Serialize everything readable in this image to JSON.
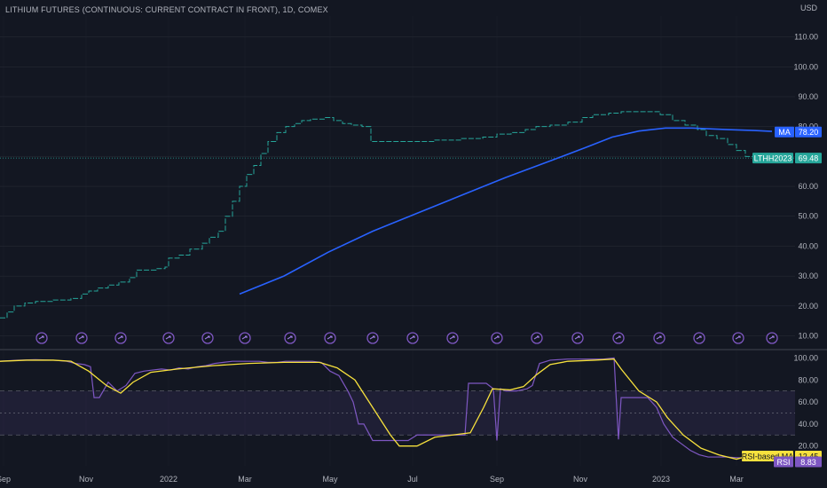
{
  "header": {
    "title": "LITHIUM FUTURES (CONTINUOUS: CURRENT CONTRACT IN FRONT), 1D, COMEX",
    "currency": "USD"
  },
  "colors": {
    "background": "#131722",
    "price": "#26a69a",
    "ma": "#2962ff",
    "rsi": "#7e57c2",
    "rsi_ma": "#f7e13d",
    "grid": "#2a2e39",
    "text": "#b2b5be"
  },
  "icons": {
    "event_marker": "forward-circle-icon"
  },
  "labels": {
    "ma_name": "MA",
    "ma_value": "78.20",
    "symbol": "LTHH2023",
    "last_price": "69.48",
    "rsi_ma_name": "RSI-based MA",
    "rsi_ma_value": "12.45",
    "rsi_name": "RSI",
    "rsi_value": "8.83"
  },
  "chart_data": [
    {
      "type": "line",
      "title": "LITHIUM FUTURES (CONTINUOUS: CURRENT CONTRACT IN FRONT), 1D, COMEX",
      "ylabel": "USD",
      "ylim": [
        6,
        117
      ],
      "yticks": [
        "10.00",
        "20.00",
        "30.00",
        "40.00",
        "50.00",
        "60.00",
        "70.00",
        "80.00",
        "90.00",
        "100.00",
        "110.00"
      ],
      "xticks": [
        "Sep",
        "Nov",
        "2022",
        "Mar",
        "May",
        "Jul",
        "Sep",
        "Nov",
        "2023",
        "Mar"
      ],
      "series": [
        {
          "name": "LTHH2023",
          "style": "step",
          "points": [
            [
              0,
              16
            ],
            [
              8,
              18
            ],
            [
              16,
              20
            ],
            [
              28,
              21
            ],
            [
              40,
              21.5
            ],
            [
              60,
              22
            ],
            [
              80,
              22.5
            ],
            [
              92,
              24
            ],
            [
              100,
              25
            ],
            [
              110,
              26
            ],
            [
              122,
              27
            ],
            [
              134,
              28
            ],
            [
              146,
              29.5
            ],
            [
              154,
              32
            ],
            [
              176,
              32.5
            ],
            [
              186,
              33
            ],
            [
              190,
              36
            ],
            [
              202,
              37
            ],
            [
              214,
              39
            ],
            [
              228,
              41
            ],
            [
              236,
              43
            ],
            [
              246,
              45
            ],
            [
              254,
              50
            ],
            [
              262,
              55
            ],
            [
              270,
              60
            ],
            [
              278,
              64
            ],
            [
              286,
              67
            ],
            [
              294,
              71
            ],
            [
              302,
              75
            ],
            [
              312,
              78
            ],
            [
              322,
              80
            ],
            [
              332,
              81
            ],
            [
              340,
              82
            ],
            [
              350,
              82.5
            ],
            [
              366,
              83
            ],
            [
              376,
              82
            ],
            [
              386,
              81
            ],
            [
              396,
              80.5
            ],
            [
              408,
              80
            ],
            [
              418,
              75
            ],
            [
              440,
              75
            ],
            [
              470,
              75
            ],
            [
              490,
              75.5
            ],
            [
              520,
              76
            ],
            [
              544,
              76.5
            ],
            [
              560,
              77.5
            ],
            [
              576,
              78
            ],
            [
              592,
              79
            ],
            [
              604,
              80
            ],
            [
              620,
              80.5
            ],
            [
              640,
              81.5
            ],
            [
              656,
              83
            ],
            [
              668,
              84
            ],
            [
              686,
              84.5
            ],
            [
              700,
              85
            ],
            [
              724,
              85
            ],
            [
              744,
              84
            ],
            [
              758,
              82
            ],
            [
              772,
              80.5
            ],
            [
              786,
              79
            ],
            [
              796,
              77
            ],
            [
              808,
              76
            ],
            [
              820,
              74
            ],
            [
              830,
              72
            ],
            [
              840,
              70
            ],
            [
              850,
              69.5
            ]
          ]
        },
        {
          "name": "MA",
          "style": "line",
          "value": 78.2,
          "points": [
            [
              270,
              24
            ],
            [
              320,
              30
            ],
            [
              370,
              38
            ],
            [
              420,
              45
            ],
            [
              470,
              51
            ],
            [
              520,
              57
            ],
            [
              570,
              63
            ],
            [
              620,
              68.5
            ],
            [
              660,
              73
            ],
            [
              690,
              76.5
            ],
            [
              720,
              78.5
            ],
            [
              750,
              79.5
            ],
            [
              780,
              79.5
            ],
            [
              820,
              79
            ],
            [
              850,
              78.7
            ],
            [
              870,
              78.4
            ]
          ]
        }
      ]
    },
    {
      "type": "line",
      "ylim": [
        2,
        106
      ],
      "yticks": [
        "20.00",
        "40.00",
        "60.00",
        "80.00",
        "100.00"
      ],
      "bands": [
        30,
        50,
        70
      ],
      "series": [
        {
          "name": "RSI",
          "value": 8.83,
          "points": [
            [
              0,
              97
            ],
            [
              20,
              98
            ],
            [
              40,
              98.5
            ],
            [
              60,
              98
            ],
            [
              75,
              97
            ],
            [
              85,
              95
            ],
            [
              95,
              94
            ],
            [
              102,
              92
            ],
            [
              106,
              64
            ],
            [
              112,
              64
            ],
            [
              122,
              78
            ],
            [
              132,
              70
            ],
            [
              142,
              75
            ],
            [
              152,
              86
            ],
            [
              162,
              88
            ],
            [
              172,
              89
            ],
            [
              182,
              90
            ],
            [
              192,
              89
            ],
            [
              202,
              91
            ],
            [
              212,
              90
            ],
            [
              222,
              92
            ],
            [
              232,
              93
            ],
            [
              242,
              95
            ],
            [
              252,
              96
            ],
            [
              262,
              97
            ],
            [
              272,
              97
            ],
            [
              282,
              97
            ],
            [
              292,
              97
            ],
            [
              302,
              96
            ],
            [
              312,
              96
            ],
            [
              322,
              97
            ],
            [
              332,
              97
            ],
            [
              342,
              97
            ],
            [
              352,
              97
            ],
            [
              362,
              96
            ],
            [
              372,
              88
            ],
            [
              382,
              84
            ],
            [
              392,
              70
            ],
            [
              398,
              60
            ],
            [
              404,
              40
            ],
            [
              410,
              40
            ],
            [
              420,
              25
            ],
            [
              440,
              25
            ],
            [
              460,
              25
            ],
            [
              470,
              30
            ],
            [
              490,
              30
            ],
            [
              510,
              30
            ],
            [
              524,
              30
            ],
            [
              528,
              77
            ],
            [
              536,
              77
            ],
            [
              548,
              77
            ],
            [
              556,
              72
            ],
            [
              560,
              25
            ],
            [
              564,
              72
            ],
            [
              570,
              70
            ],
            [
              582,
              70
            ],
            [
              594,
              72
            ],
            [
              600,
              75
            ],
            [
              608,
              95
            ],
            [
              620,
              98
            ],
            [
              640,
              99
            ],
            [
              660,
              99
            ],
            [
              680,
              99
            ],
            [
              692,
              100
            ],
            [
              697,
              26
            ],
            [
              700,
              64
            ],
            [
              716,
              64
            ],
            [
              730,
              64
            ],
            [
              740,
              55
            ],
            [
              748,
              40
            ],
            [
              758,
              28
            ],
            [
              768,
              22
            ],
            [
              778,
              16
            ],
            [
              788,
              12
            ],
            [
              798,
              10
            ],
            [
              818,
              10
            ],
            [
              840,
              9
            ],
            [
              860,
              9
            ],
            [
              872,
              8.83
            ]
          ]
        },
        {
          "name": "RSI-based MA",
          "value": 12.45,
          "points": [
            [
              0,
              97
            ],
            [
              30,
              98
            ],
            [
              60,
              98
            ],
            [
              80,
              97
            ],
            [
              100,
              88
            ],
            [
              120,
              75
            ],
            [
              136,
              68
            ],
            [
              150,
              78
            ],
            [
              170,
              87
            ],
            [
              200,
              90
            ],
            [
              240,
              93
            ],
            [
              280,
              95
            ],
            [
              320,
              96
            ],
            [
              360,
              96
            ],
            [
              380,
              91
            ],
            [
              400,
              80
            ],
            [
              420,
              55
            ],
            [
              440,
              30
            ],
            [
              450,
              20
            ],
            [
              470,
              20
            ],
            [
              490,
              28
            ],
            [
              510,
              30
            ],
            [
              530,
              32
            ],
            [
              545,
              55
            ],
            [
              555,
              72
            ],
            [
              575,
              71
            ],
            [
              590,
              74
            ],
            [
              605,
              85
            ],
            [
              620,
              94
            ],
            [
              640,
              97
            ],
            [
              670,
              98
            ],
            [
              692,
              99
            ],
            [
              700,
              90
            ],
            [
              720,
              70
            ],
            [
              740,
              60
            ],
            [
              752,
              46
            ],
            [
              770,
              30
            ],
            [
              790,
              18
            ],
            [
              810,
              12
            ],
            [
              830,
              8
            ],
            [
              850,
              12.45
            ],
            [
              875,
              12
            ]
          ]
        }
      ]
    }
  ]
}
